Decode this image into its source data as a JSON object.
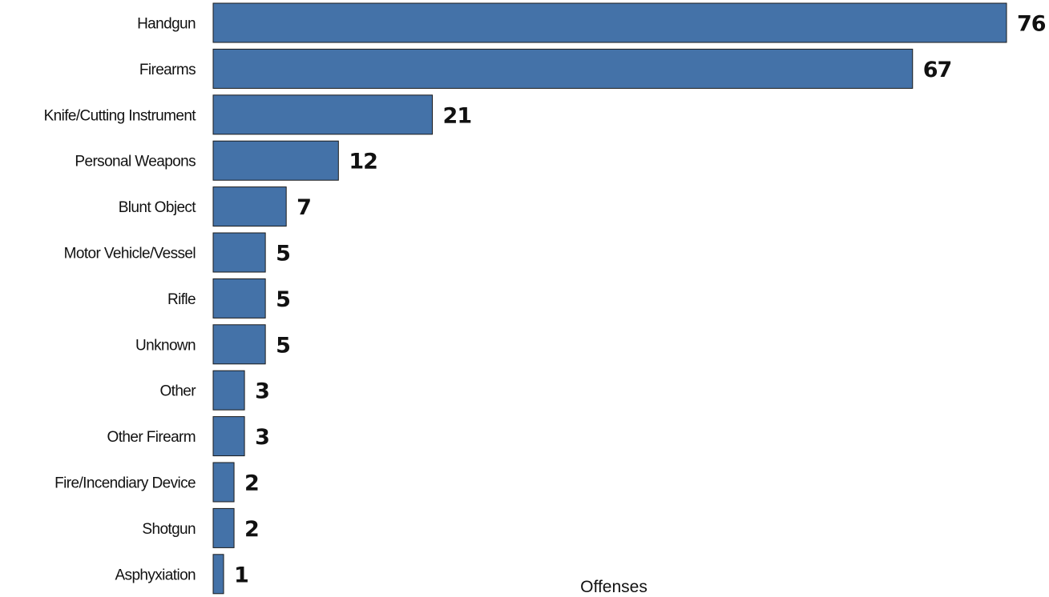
{
  "chart_data": {
    "type": "bar",
    "orientation": "horizontal",
    "categories": [
      "Handgun",
      "Firearms",
      "Knife/Cutting Instrument",
      "Personal Weapons",
      "Blunt Object",
      "Motor Vehicle/Vessel",
      "Rifle",
      "Unknown",
      "Other",
      "Other Firearm",
      "Fire/Incendiary Device",
      "Shotgun",
      "Asphyxiation"
    ],
    "values": [
      76,
      67,
      21,
      12,
      7,
      5,
      5,
      5,
      3,
      3,
      2,
      2,
      1
    ],
    "xlabel": "Offenses",
    "ylabel": "",
    "title": "",
    "xlim": [
      0,
      76
    ],
    "grid": false,
    "data_labels": true,
    "bar_color": "#4472a8"
  }
}
